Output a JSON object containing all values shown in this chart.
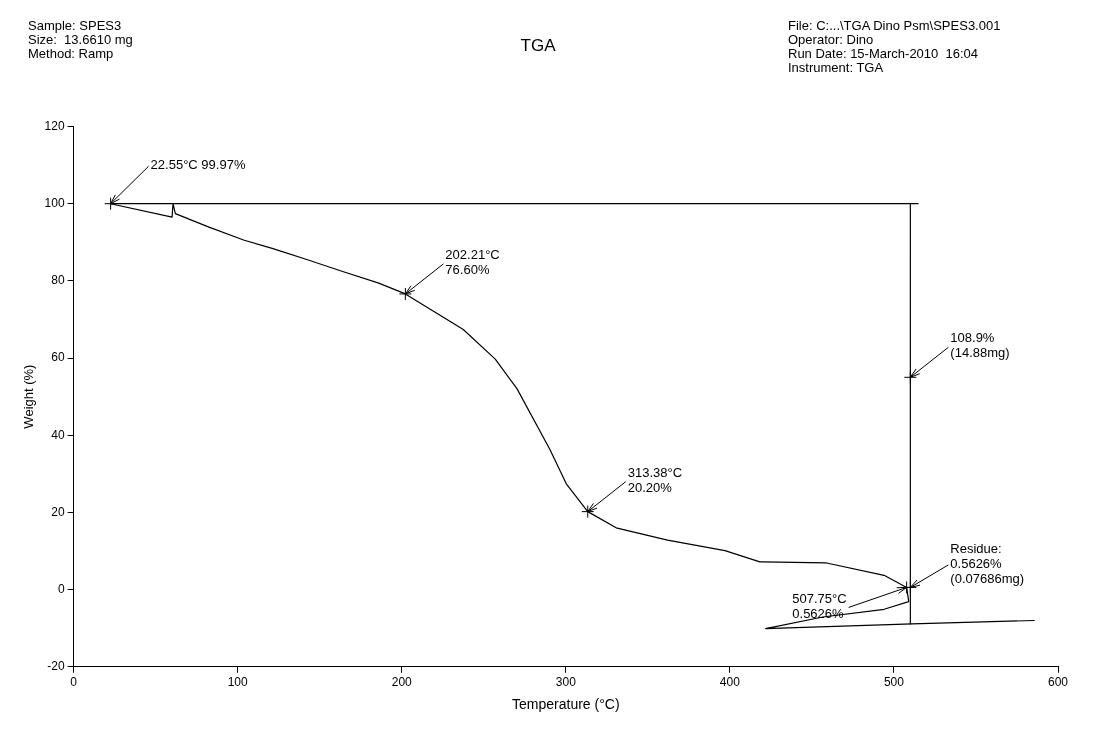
{
  "chart_data": {
    "type": "line",
    "title": "TGA",
    "xlabel": "Temperature (°C)",
    "ylabel": "Weight (%)",
    "xlim": [
      0,
      600
    ],
    "xticks": [
      0,
      100,
      200,
      300,
      400,
      500,
      600
    ],
    "ylim": [
      -20,
      120
    ],
    "yticks": [
      -20,
      0,
      20,
      40,
      60,
      80,
      100,
      120
    ],
    "grid": false,
    "legend": false,
    "marker": "none",
    "line_style": "solid",
    "series": [
      {
        "color": "#000000",
        "x": [
          22.55,
          60,
          60.6,
          62,
          82.5,
          104,
          121,
          143,
          164,
          186,
          202.21,
          237.5,
          257,
          270.3,
          290.3,
          300.3,
          313.38,
          330.7,
          362,
          397,
          418.3,
          459,
          494,
          507.75,
          509,
          494,
          456.6,
          421.8,
          511,
          585.8
        ],
        "values": [
          99.97,
          96.5,
          100,
          97.4,
          93.9,
          90.5,
          88.4,
          85.4,
          82.4,
          79.4,
          76.6,
          67.4,
          59.7,
          52,
          36.3,
          27.4,
          20.2,
          16,
          12.8,
          10.1,
          7.2,
          6.9,
          3.7,
          0.5626,
          -3.1,
          -5.1,
          -7.1,
          -10.1,
          -8.9,
          -8
        ]
      },
      {
        "color": "#000000",
        "x": [
          22.55,
          515
        ],
        "values": [
          99.97,
          99.97
        ]
      },
      {
        "color": "#000000",
        "x": [
          510,
          510
        ],
        "values": [
          99.97,
          -8.9
        ]
      }
    ],
    "annotations": [
      "Sample: SPES3\nSize:  13.6610 mg\nMethod: Ramp",
      "File: C:...\\TGA Dino Psm\\SPES3.001\nOperator: Dino\nRun Date: 15-March-2010  16:04\nInstrument: TGA",
      {
        "text": "22.55°C 99.97%",
        "x": 22.55,
        "y": 99.97
      },
      {
        "text": "202.21°C\n76.60%",
        "x": 202.21,
        "y": 76.6
      },
      {
        "text": "313.38°C\n20.20%",
        "x": 313.38,
        "y": 20.2
      },
      {
        "text": "108.9%\n(14.88mg)",
        "x": 510,
        "y": 55
      },
      {
        "text": "Residue:\n0.5626%\n(0.07686mg)",
        "x": 510,
        "y": 0.5626
      },
      {
        "text": "507.75°C\n0.5626%",
        "x": 507.75,
        "y": 0.5626
      }
    ]
  }
}
